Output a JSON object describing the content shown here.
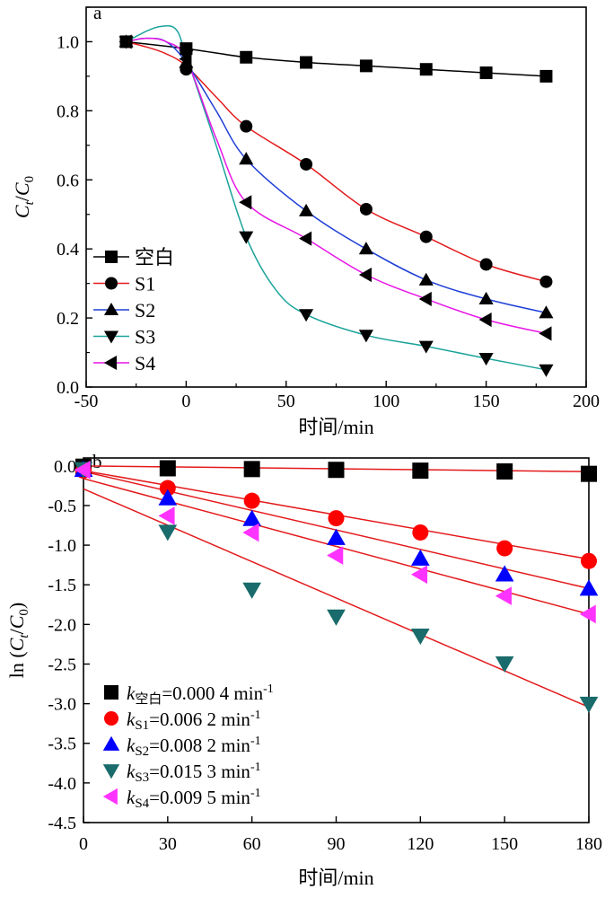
{
  "chart_data": [
    {
      "panel_label": "a",
      "type": "line",
      "xlabel": "时间/min",
      "ylabel": {
        "base": "C",
        "sub_t": "t",
        "slash": "/",
        "sub_0": "0"
      },
      "xlim": [
        -50,
        200
      ],
      "ylim": [
        0.0,
        1.1
      ],
      "x_ticks": [
        -50,
        0,
        50,
        100,
        150,
        200
      ],
      "y_ticks": [
        0.0,
        0.2,
        0.4,
        0.6,
        0.8,
        1.0
      ],
      "x_tick_labels": [
        "-50",
        "0",
        "50",
        "100",
        "150",
        "200"
      ],
      "y_tick_labels": [
        "0.0",
        "0.2",
        "0.4",
        "0.6",
        "0.8",
        "1.0"
      ],
      "legend_position": "bottom-left",
      "series": [
        {
          "name": "空白",
          "color": "#000000",
          "marker": "square",
          "x": [
            -30,
            0,
            30,
            60,
            90,
            120,
            150,
            180
          ],
          "y": [
            1.0,
            0.98,
            0.955,
            0.94,
            0.93,
            0.92,
            0.91,
            0.9
          ],
          "curve_x": [
            -30,
            0,
            30,
            60,
            90,
            120,
            150,
            180
          ],
          "curve_y": [
            1.0,
            0.98,
            0.955,
            0.94,
            0.93,
            0.92,
            0.91,
            0.9
          ]
        },
        {
          "name": "S1",
          "color": "#e31a1c",
          "marker": "circle",
          "x": [
            -30,
            0,
            30,
            60,
            90,
            120,
            150,
            180
          ],
          "y": [
            1.0,
            0.92,
            0.755,
            0.645,
            0.515,
            0.435,
            0.355,
            0.305
          ],
          "curve_x": [
            -30,
            -20,
            -10,
            0,
            15,
            30,
            60,
            90,
            120,
            150,
            180
          ],
          "curve_y": [
            1.0,
            0.985,
            0.965,
            0.93,
            0.84,
            0.755,
            0.645,
            0.515,
            0.435,
            0.355,
            0.305
          ]
        },
        {
          "name": "S2",
          "color": "#1f3fd6",
          "marker": "triangle-up",
          "x": [
            -30,
            0,
            30,
            60,
            90,
            120,
            150,
            180
          ],
          "y": [
            1.0,
            0.94,
            0.66,
            0.51,
            0.4,
            0.31,
            0.255,
            0.215
          ],
          "curve_x": [
            -30,
            -20,
            -10,
            0,
            15,
            30,
            60,
            90,
            120,
            150,
            180
          ],
          "curve_y": [
            1.0,
            1.01,
            1.0,
            0.94,
            0.8,
            0.66,
            0.51,
            0.4,
            0.31,
            0.255,
            0.215
          ]
        },
        {
          "name": "S3",
          "color": "#1aa39a",
          "marker": "triangle-down",
          "x": [
            -30,
            0,
            30,
            60,
            90,
            120,
            150,
            180
          ],
          "y": [
            1.0,
            0.96,
            0.435,
            0.21,
            0.15,
            0.118,
            0.083,
            0.05
          ],
          "curve_x": [
            -30,
            -20,
            -12,
            -5,
            0,
            15,
            30,
            45,
            60,
            90,
            120,
            150,
            180
          ],
          "curve_y": [
            1.0,
            1.03,
            1.045,
            1.035,
            0.96,
            0.7,
            0.435,
            0.28,
            0.21,
            0.15,
            0.118,
            0.083,
            0.05
          ]
        },
        {
          "name": "S4",
          "color": "#e815e6",
          "marker": "triangle-left",
          "x": [
            -30,
            0,
            30,
            60,
            90,
            120,
            150,
            180
          ],
          "y": [
            1.0,
            0.95,
            0.535,
            0.43,
            0.325,
            0.255,
            0.195,
            0.155
          ],
          "curve_x": [
            -30,
            -20,
            -10,
            0,
            15,
            30,
            60,
            90,
            120,
            150,
            180
          ],
          "curve_y": [
            1.0,
            1.01,
            1.0,
            0.95,
            0.72,
            0.535,
            0.43,
            0.325,
            0.255,
            0.195,
            0.155
          ]
        }
      ]
    },
    {
      "panel_label": "b",
      "type": "scatter",
      "xlabel": "时间/min",
      "ylabel": {
        "prefix": "ln (",
        "base": "C",
        "sub_t": "t",
        "slash": "/",
        "sub_0": "0",
        "suffix": ")"
      },
      "xlim": [
        0,
        180
      ],
      "ylim": [
        -4.5,
        0.1
      ],
      "x_ticks": [
        0,
        30,
        60,
        90,
        120,
        150,
        180
      ],
      "y_ticks": [
        0.0,
        -0.5,
        -1.0,
        -1.5,
        -2.0,
        -2.5,
        -3.0,
        -3.5,
        -4.0,
        -4.5
      ],
      "x_tick_labels": [
        "0",
        "30",
        "60",
        "90",
        "120",
        "150",
        "180"
      ],
      "y_tick_labels": [
        "0.0",
        "-0.5",
        "-1.0",
        "-1.5",
        "-2.0",
        "-2.5",
        "-3.0",
        "-3.5",
        "-4.0",
        "-4.5"
      ],
      "fit_line_color": "#e31a1c",
      "legend_position": "bottom-left",
      "series": [
        {
          "name": "空白",
          "color": "#000000",
          "marker": "square",
          "legend_sub": "空白",
          "legend_value": "=0.000 4 min",
          "legend_exp": "-1",
          "k": 0.0004,
          "intercept": 0.0,
          "x": [
            0,
            30,
            60,
            90,
            120,
            150,
            180
          ],
          "y": [
            -0.01,
            -0.03,
            -0.04,
            -0.05,
            -0.06,
            -0.07,
            -0.1
          ]
        },
        {
          "name": "S1",
          "color": "#ff0000",
          "marker": "circle",
          "legend_sub": "S1",
          "legend_value": "=0.006 2 min",
          "legend_exp": "-1",
          "k": 0.0062,
          "intercept": -0.06,
          "x": [
            0,
            30,
            60,
            90,
            120,
            150,
            180
          ],
          "y": [
            -0.06,
            -0.28,
            -0.44,
            -0.66,
            -0.84,
            -1.04,
            -1.2
          ]
        },
        {
          "name": "S2",
          "color": "#0000ff",
          "marker": "triangle-up",
          "legend_sub": "S2",
          "legend_value": "=0.008 2 min",
          "legend_exp": "-1",
          "k": 0.0082,
          "intercept": -0.07,
          "x": [
            0,
            30,
            60,
            90,
            120,
            150,
            180
          ],
          "y": [
            -0.05,
            -0.41,
            -0.67,
            -0.91,
            -1.17,
            -1.37,
            -1.55
          ]
        },
        {
          "name": "S3",
          "color": "#1a6b6b",
          "marker": "triangle-down",
          "legend_sub": "S3",
          "legend_value": "=0.015 3 min",
          "legend_exp": "-1",
          "k": 0.0153,
          "intercept": -0.29,
          "x": [
            0,
            30,
            60,
            90,
            120,
            150,
            180
          ],
          "y": [
            -0.04,
            -0.83,
            -1.56,
            -1.9,
            -2.14,
            -2.49,
            -3.0
          ]
        },
        {
          "name": "S4",
          "color": "#ff33ff",
          "marker": "triangle-left",
          "legend_sub": "S4",
          "legend_value": "=0.009 5 min",
          "legend_exp": "-1",
          "k": 0.0095,
          "intercept": -0.16,
          "x": [
            0,
            30,
            60,
            90,
            120,
            150,
            180
          ],
          "y": [
            -0.05,
            -0.63,
            -0.84,
            -1.13,
            -1.37,
            -1.64,
            -1.87
          ]
        }
      ]
    }
  ]
}
